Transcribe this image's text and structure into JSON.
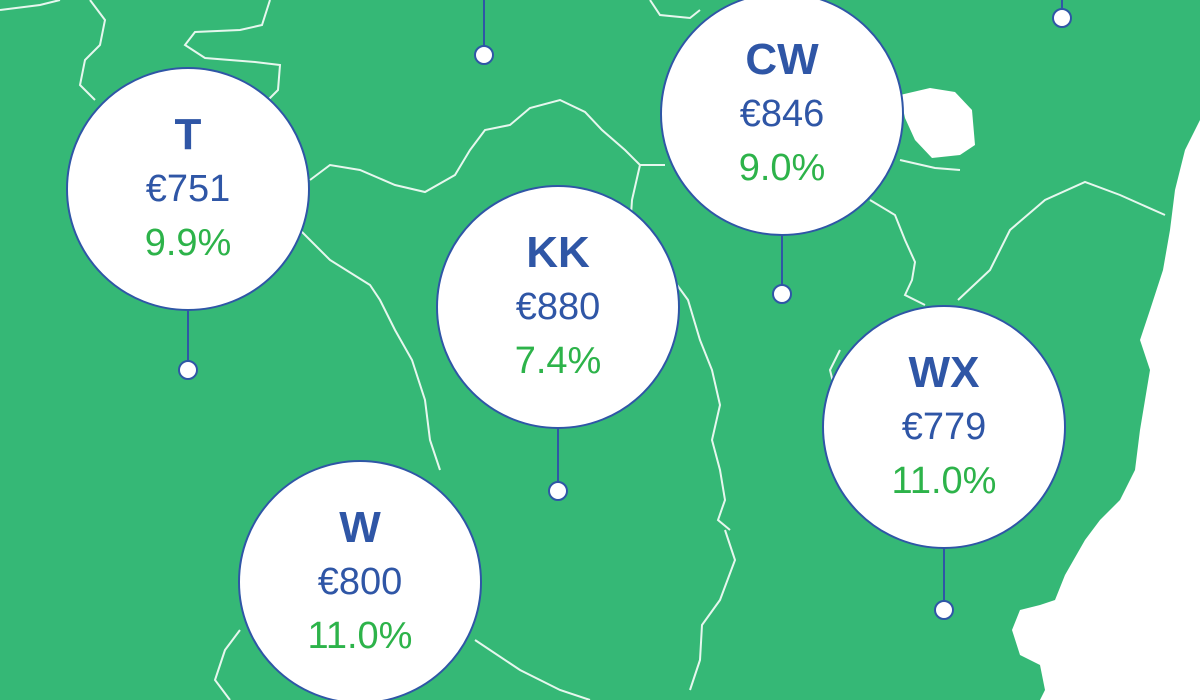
{
  "map": {
    "land_color": "#35b876",
    "sea_color": "#ffffff",
    "border_color": "#e6f7ee",
    "label_text_color": "#2f56a6",
    "change_text_color": "#2db34a"
  },
  "counties": [
    {
      "code": "T",
      "price": "€751",
      "change": "9.9%"
    },
    {
      "code": "CW",
      "price": "€846",
      "change": "9.0%"
    },
    {
      "code": "KK",
      "price": "€880",
      "change": "7.4%"
    },
    {
      "code": "WX",
      "price": "€779",
      "change": "11.0%"
    },
    {
      "code": "W",
      "price": "€800",
      "change": "11.0%"
    }
  ]
}
